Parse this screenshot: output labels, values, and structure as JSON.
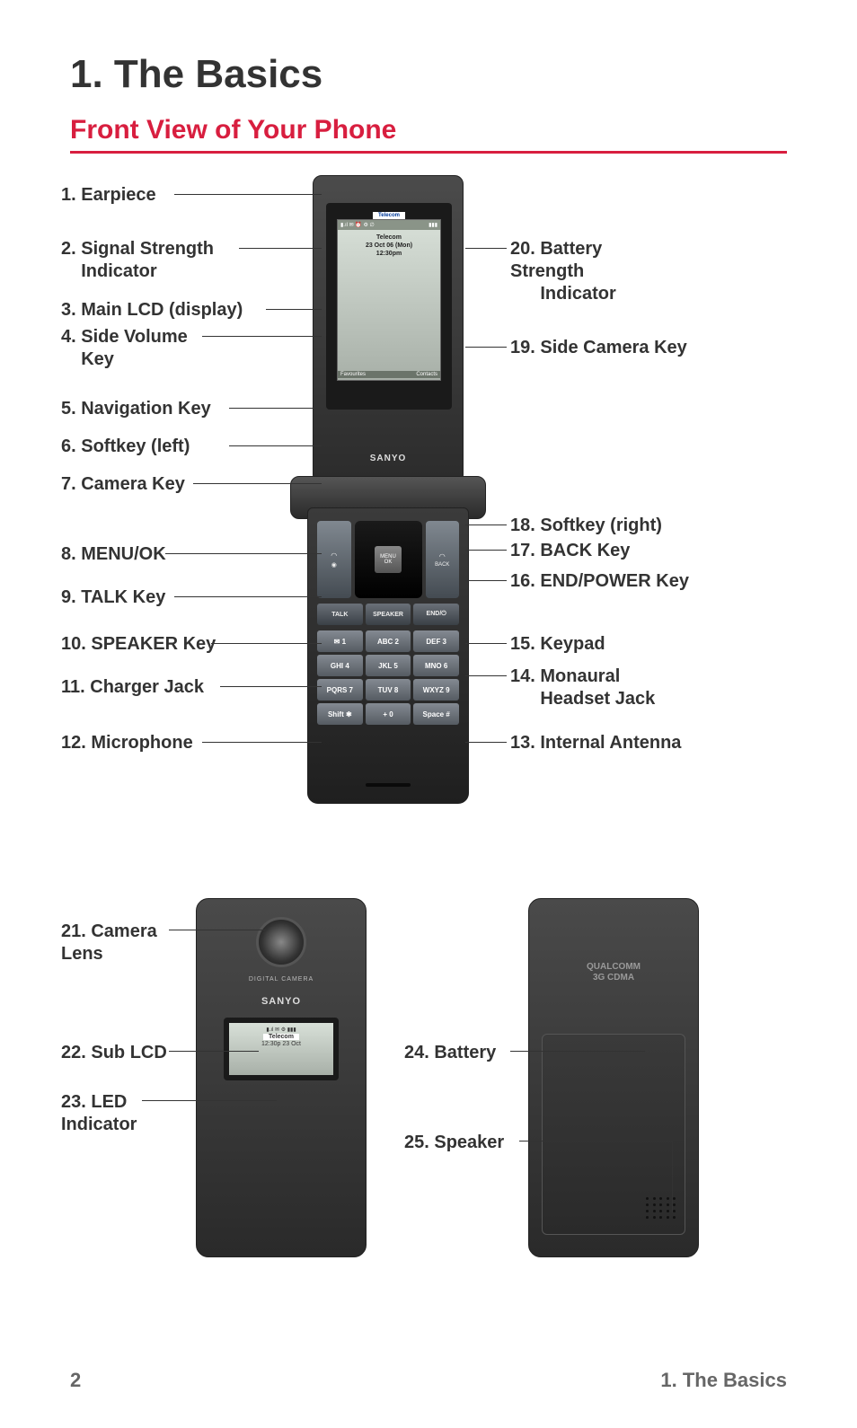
{
  "page": {
    "title": "1. The Basics",
    "subtitle": "Front View of Your Phone",
    "footer_page": "2",
    "footer_section": "1. The Basics"
  },
  "colors": {
    "accent": "#d81e3f",
    "text": "#333333",
    "footer": "#666666",
    "phone_body": "#3a3a3a",
    "screen_bg": "#c0c8c0"
  },
  "phone_screen": {
    "carrier_badge": "Telecom",
    "status_left": "▮.ıl ✉ ⏰ ⚙ ∅",
    "status_right": "▮▮▮",
    "carrier": "Telecom",
    "date": "23 Oct 06 (Mon)",
    "time": "12:30pm",
    "softkey_left": "Favourites",
    "softkey_right": "Contacts",
    "brand": "SANYO"
  },
  "nav": {
    "ok": "MENU\nOK",
    "back": "BACK",
    "talk": "TALK",
    "speaker": "SPEAKER",
    "end": "END/⏻"
  },
  "keypad": [
    "✉ 1",
    "ABC 2",
    "DEF 3",
    "GHI 4",
    "JKL 5",
    "MNO 6",
    "PQRS 7",
    "TUV 8",
    "WXYZ 9",
    "Shift ✱",
    "+ 0",
    "Space #"
  ],
  "callouts_left": [
    {
      "n": "1",
      "t": "Earpiece"
    },
    {
      "n": "2",
      "t": "Signal Strength\nIndicator"
    },
    {
      "n": "3",
      "t": "Main LCD (display)"
    },
    {
      "n": "4",
      "t": "Side Volume\nKey"
    },
    {
      "n": "5",
      "t": "Navigation Key"
    },
    {
      "n": "6",
      "t": "Softkey (left)"
    },
    {
      "n": "7",
      "t": "Camera Key"
    },
    {
      "n": "8",
      "t": "MENU/OK"
    },
    {
      "n": "9",
      "t": "TALK Key"
    },
    {
      "n": "10",
      "t": "SPEAKER Key"
    },
    {
      "n": "11",
      "t": "Charger Jack"
    },
    {
      "n": "12",
      "t": "Microphone"
    }
  ],
  "callouts_right": [
    {
      "n": "20",
      "t": "Battery Strength\nIndicator"
    },
    {
      "n": "19",
      "t": "Side Camera Key"
    },
    {
      "n": "18",
      "t": "Softkey (right)"
    },
    {
      "n": "17",
      "t": "BACK Key"
    },
    {
      "n": "16",
      "t": "END/POWER Key"
    },
    {
      "n": "15",
      "t": "Keypad"
    },
    {
      "n": "14",
      "t": "Monaural\nHeadset Jack"
    },
    {
      "n": "13",
      "t": "Internal Antenna"
    }
  ],
  "lower": {
    "closed": {
      "dcam": "DIGITAL CAMERA",
      "brand": "SANYO",
      "sub_status": "▮.ıl ✉ ⚙ ▮▮▮",
      "sub_carrier": "Telecom",
      "sub_time": "12:30p 23 Oct"
    },
    "back": {
      "qualcomm1": "QUALCOMM",
      "qualcomm2": "3G CDMA"
    },
    "labels": {
      "c21": "21. Camera\nLens",
      "c22": "22. Sub LCD",
      "c23": "23. LED\nIndicator",
      "c24": "24. Battery",
      "c25": "25. Speaker"
    }
  },
  "layout": {
    "left_positions": [
      20,
      80,
      148,
      178,
      258,
      300,
      342,
      420,
      468,
      520,
      568,
      630
    ],
    "right_positions": [
      80,
      190,
      388,
      416,
      450,
      520,
      556,
      630
    ],
    "leader_left_end": 230,
    "leader_right_start": 470
  }
}
